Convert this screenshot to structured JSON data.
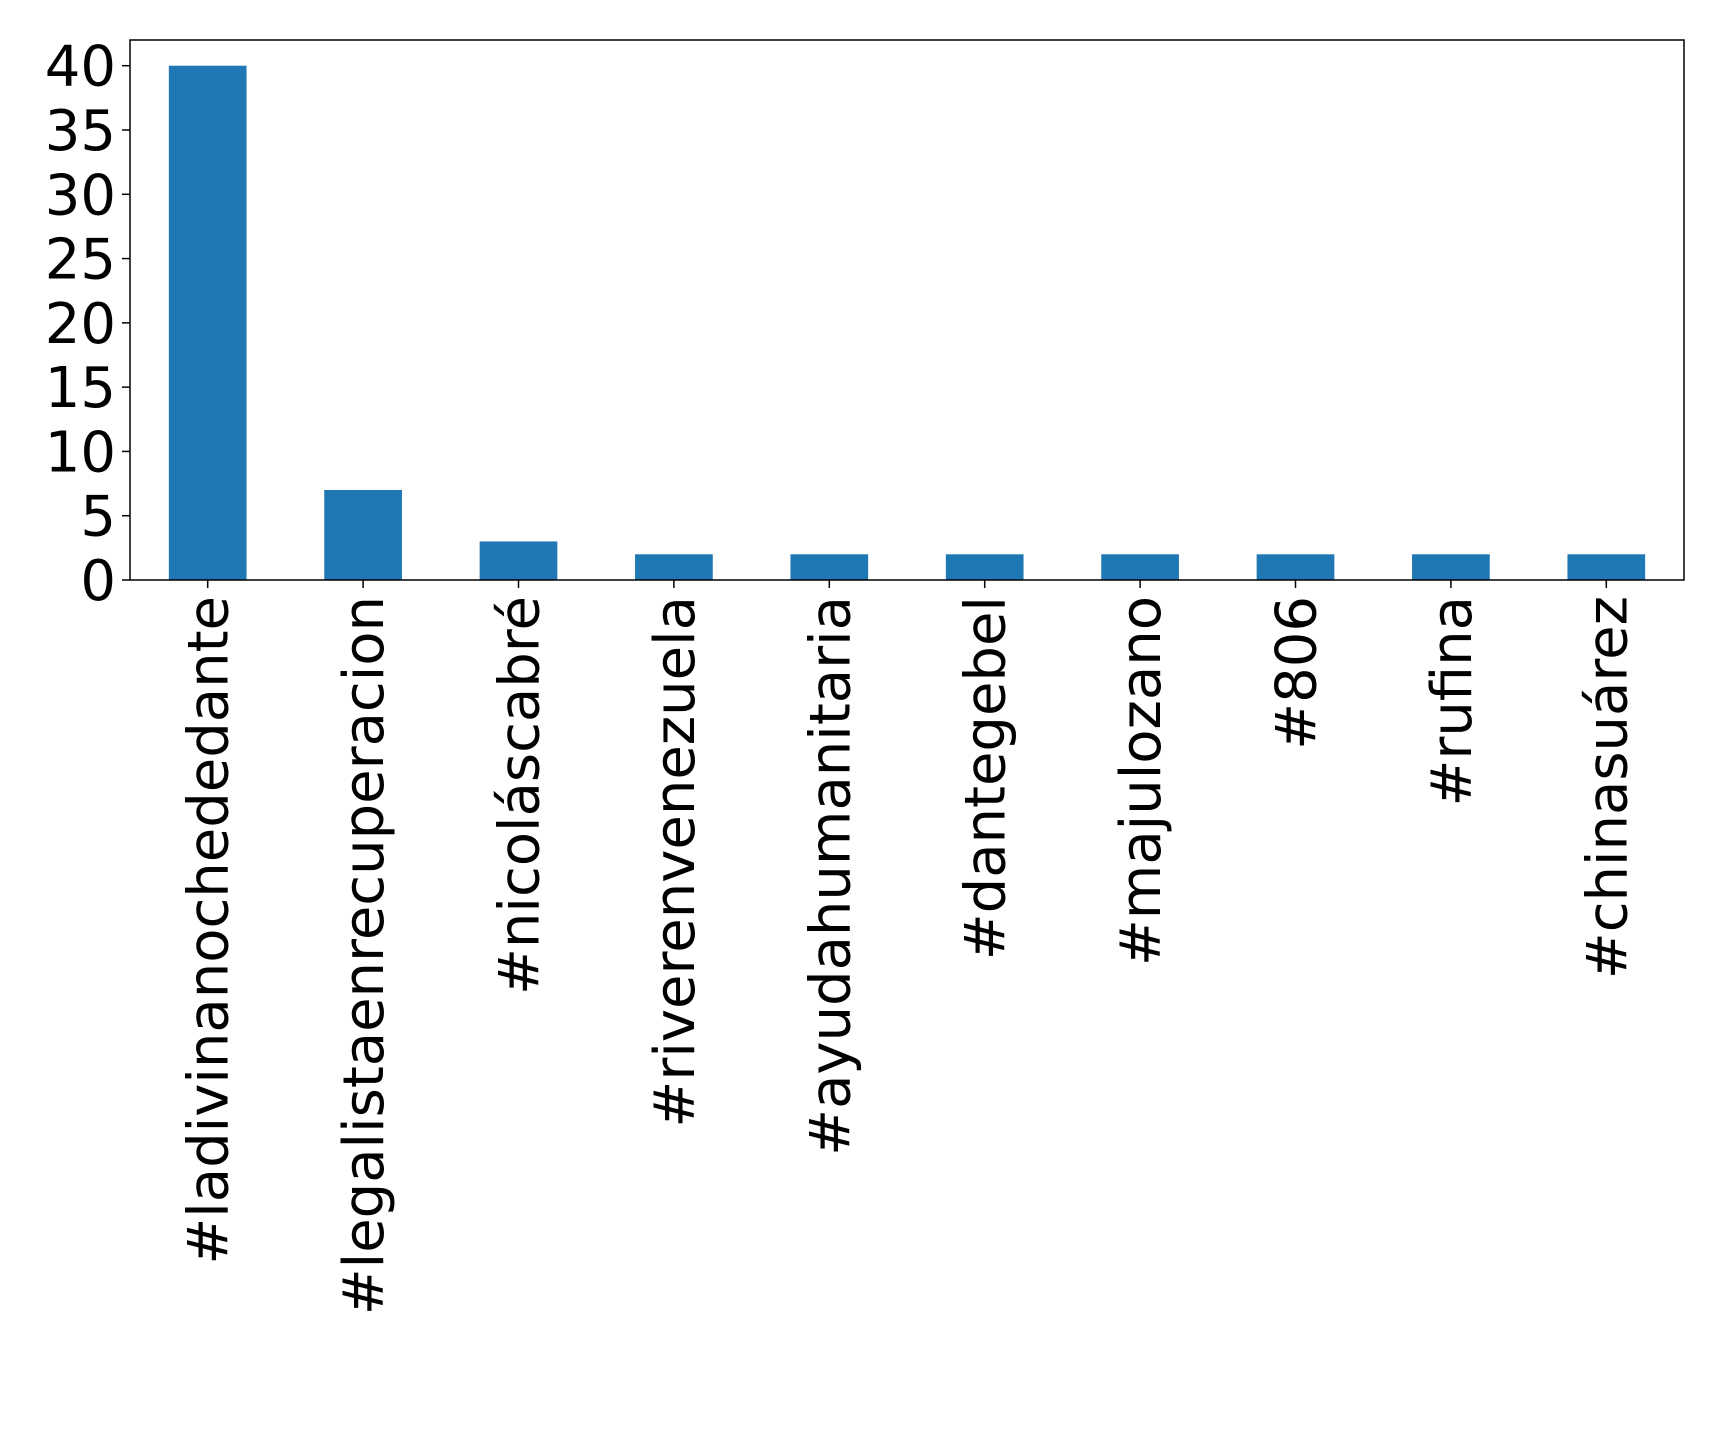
{
  "chart_data": {
    "type": "bar",
    "title": "",
    "xlabel": "",
    "ylabel": "",
    "categories": [
      "#ladivinanochededante",
      "#legalistaenrecuperacion",
      "#nicoláscabré",
      "#riverenvenezuela",
      "#ayudahumanitaria",
      "#dantegebel",
      "#majulozano",
      "#806",
      "#rufina",
      "#chinasuárez"
    ],
    "values": [
      40,
      7,
      3,
      2,
      2,
      2,
      2,
      2,
      2,
      2
    ],
    "ylim": [
      0,
      42
    ],
    "yticks": [
      0,
      5,
      10,
      15,
      20,
      25,
      30,
      35,
      40
    ],
    "grid": false,
    "legend": "none",
    "colors": {
      "bar": "#1f77b4",
      "axis": "#000000"
    }
  }
}
